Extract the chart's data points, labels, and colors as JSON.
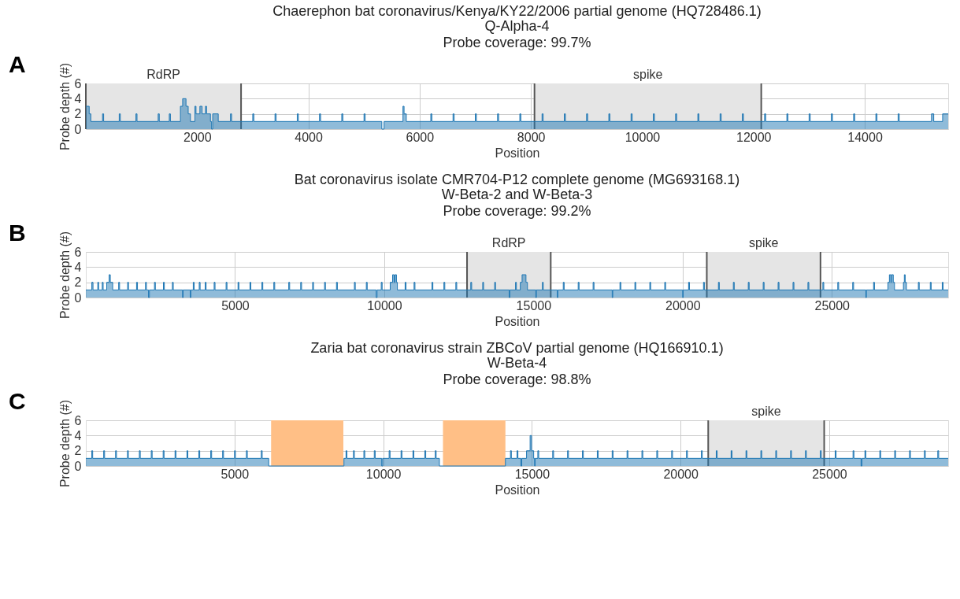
{
  "chart_data": [
    {
      "type": "step",
      "title": "Chaerephon bat coronavirus/Kenya/KY22/2006 partial genome (HQ728486.1)",
      "subtitle": "Q-Alpha-4\nProbe coverage: 99.7%",
      "xlabel": "Position",
      "ylabel": "Probe depth (#)",
      "annotations": [
        "A"
      ],
      "x": [
        0,
        60,
        90,
        300,
        320,
        600,
        620,
        900,
        920,
        1300,
        1320,
        1500,
        1520,
        1700,
        1740,
        1800,
        1840,
        1880,
        1960,
        1980,
        2050,
        2090,
        2150,
        2170,
        2240,
        2260,
        2280,
        2380,
        2600,
        2620,
        3000,
        3020,
        3400,
        3420,
        3800,
        3820,
        4200,
        4220,
        4600,
        4620,
        5000,
        5020,
        5320,
        5360,
        5700,
        5720,
        5760,
        6200,
        6220,
        6600,
        6620,
        7000,
        7020,
        7400,
        7420,
        7800,
        7820,
        8200,
        8220,
        8600,
        8620,
        9000,
        9020,
        9400,
        9420,
        9800,
        9820,
        10200,
        10220,
        10600,
        10620,
        11000,
        11020,
        11400,
        11420,
        11800,
        11820,
        12200,
        12220,
        12600,
        12620,
        13000,
        13020,
        13400,
        13420,
        13800,
        13820,
        14200,
        14220,
        14600,
        14620,
        15200,
        15240,
        15400,
        15500
      ],
      "series": [
        {
          "color": "#1f77b4",
          "values": [
            3,
            2,
            1,
            2,
            1,
            2,
            1,
            2,
            1,
            2,
            1,
            2,
            1,
            3,
            4,
            3,
            2,
            1,
            3,
            2,
            3,
            2,
            3,
            2,
            1,
            0,
            2,
            1,
            2,
            1,
            2,
            1,
            2,
            1,
            2,
            1,
            2,
            1,
            2,
            1,
            2,
            1,
            0,
            1,
            3,
            2,
            1,
            2,
            1,
            2,
            1,
            2,
            1,
            2,
            1,
            2,
            1,
            2,
            1,
            2,
            1,
            2,
            1,
            2,
            1,
            2,
            1,
            2,
            1,
            2,
            1,
            2,
            1,
            2,
            1,
            2,
            1,
            2,
            1,
            2,
            1,
            2,
            1,
            2,
            1,
            2,
            1,
            2,
            1,
            2,
            1,
            2,
            1,
            2,
            2
          ]
        }
      ],
      "xlim": [
        0,
        15500
      ],
      "ylim": [
        0,
        6
      ],
      "xticks": [
        2000,
        4000,
        6000,
        8000,
        10000,
        12000,
        14000
      ],
      "yticks": [
        0,
        2,
        4,
        6
      ],
      "grid": true,
      "bands": [
        {
          "axis": "x",
          "from": 0,
          "to": 2790,
          "label": "RdRP",
          "color": "#e5e5e5"
        },
        {
          "axis": "x",
          "from": 8064,
          "to": 12140,
          "label": "spike",
          "color": "#e5e5e5"
        }
      ],
      "ref_lines": [
        {
          "axis": "x",
          "value": 0,
          "color": "#555555"
        },
        {
          "axis": "x",
          "value": 2790,
          "color": "#555555"
        },
        {
          "axis": "x",
          "value": 8064,
          "color": "#555555"
        },
        {
          "axis": "x",
          "value": 12140,
          "color": "#555555"
        }
      ]
    },
    {
      "type": "step",
      "title": "Bat coronavirus isolate CMR704-P12 complete genome (MG693168.1)",
      "subtitle": "W-Beta-2 and W-Beta-3\nProbe coverage: 99.2%",
      "xlabel": "Position",
      "ylabel": "Probe depth (#)",
      "annotations": [
        "B"
      ],
      "x": [
        0,
        200,
        240,
        400,
        430,
        550,
        580,
        700,
        780,
        820,
        900,
        1100,
        1130,
        1400,
        1430,
        1700,
        1730,
        2000,
        2030,
        2100,
        2130,
        2300,
        2330,
        2600,
        2630,
        2900,
        2930,
        3240,
        3260,
        3500,
        3520,
        3600,
        3630,
        3800,
        3830,
        4000,
        4030,
        4300,
        4330,
        4700,
        4730,
        5100,
        5130,
        5500,
        5530,
        5900,
        5930,
        6300,
        6330,
        6800,
        6830,
        7200,
        7230,
        7600,
        7630,
        8000,
        8030,
        8400,
        8430,
        9000,
        9030,
        9400,
        9430,
        9730,
        9760,
        9900,
        9930,
        10200,
        10280,
        10330,
        10360,
        10410,
        10440,
        10700,
        10730,
        11000,
        11030,
        11600,
        11630,
        12000,
        12030,
        12400,
        12430,
        12900,
        12930,
        13300,
        13330,
        13700,
        13730,
        14190,
        14210,
        14400,
        14430,
        14560,
        14620,
        14750,
        14800,
        15080,
        15100,
        15300,
        15330,
        15800,
        15820,
        16000,
        16030,
        16500,
        16530,
        17000,
        17030,
        17640,
        17660,
        17900,
        17930,
        18400,
        18430,
        18900,
        18930,
        19400,
        19430,
        20000,
        20020,
        20200,
        20230,
        20700,
        20730,
        21200,
        21230,
        21700,
        21730,
        22200,
        22230,
        22700,
        22730,
        23200,
        23230,
        23700,
        23730,
        24200,
        24230,
        24700,
        24730,
        25200,
        25230,
        25700,
        25730,
        26140,
        26160,
        26400,
        26430,
        26880,
        26930,
        26980,
        27000,
        27060,
        27100,
        27400,
        27430,
        27460,
        27500,
        27900,
        27930,
        28300,
        28330,
        28700,
        28730,
        28900
      ],
      "series": [
        {
          "color": "#1f77b4",
          "values": [
            1,
            2,
            1,
            2,
            1,
            2,
            1,
            2,
            3,
            2,
            1,
            2,
            1,
            2,
            1,
            2,
            1,
            2,
            1,
            0,
            1,
            2,
            1,
            2,
            1,
            2,
            1,
            0,
            1,
            0,
            1,
            2,
            1,
            2,
            1,
            2,
            1,
            2,
            1,
            2,
            1,
            2,
            1,
            2,
            1,
            2,
            1,
            2,
            1,
            2,
            1,
            2,
            1,
            2,
            1,
            2,
            1,
            2,
            1,
            2,
            1,
            2,
            1,
            0,
            1,
            2,
            1,
            2,
            3,
            2,
            3,
            2,
            1,
            2,
            1,
            2,
            1,
            2,
            1,
            2,
            1,
            2,
            1,
            2,
            1,
            2,
            1,
            2,
            1,
            0,
            1,
            2,
            1,
            2,
            3,
            2,
            1,
            0,
            1,
            2,
            1,
            0,
            1,
            2,
            1,
            2,
            1,
            2,
            1,
            0,
            1,
            2,
            1,
            2,
            1,
            2,
            1,
            2,
            1,
            0,
            1,
            2,
            1,
            2,
            1,
            2,
            1,
            2,
            1,
            2,
            1,
            2,
            1,
            2,
            1,
            2,
            1,
            2,
            1,
            2,
            1,
            2,
            1,
            2,
            1,
            0,
            1,
            2,
            1,
            2,
            3,
            2,
            3,
            2,
            1,
            2,
            3,
            2,
            1,
            2,
            1,
            2,
            1,
            2,
            1,
            1
          ]
        }
      ],
      "xlim": [
        0,
        28900
      ],
      "ylim": [
        0,
        6
      ],
      "xticks": [
        5000,
        10000,
        15000,
        20000,
        25000
      ],
      "yticks": [
        0,
        2,
        4,
        6
      ],
      "grid": true,
      "bands": [
        {
          "axis": "x",
          "from": 12775,
          "to": 15580,
          "label": "RdRP",
          "color": "#e5e5e5"
        },
        {
          "axis": "x",
          "from": 20810,
          "to": 24620,
          "label": "spike",
          "color": "#e5e5e5"
        }
      ],
      "ref_lines": [
        {
          "axis": "x",
          "value": 12775,
          "color": "#555555"
        },
        {
          "axis": "x",
          "value": 15580,
          "color": "#555555"
        },
        {
          "axis": "x",
          "value": 20810,
          "color": "#555555"
        },
        {
          "axis": "x",
          "value": 24620,
          "color": "#555555"
        }
      ]
    },
    {
      "type": "step",
      "title": "Zaria bat coronavirus strain ZBCoV partial genome (HQ166910.1)",
      "subtitle": "W-Beta-4\nProbe coverage: 98.8%",
      "xlabel": "Position",
      "ylabel": "Probe depth (#)",
      "annotations": [
        "C"
      ],
      "x": [
        0,
        200,
        230,
        600,
        630,
        1000,
        1030,
        1400,
        1430,
        1800,
        1830,
        2200,
        2230,
        2600,
        2630,
        3000,
        3030,
        3400,
        3430,
        3800,
        3830,
        4200,
        4230,
        4600,
        4630,
        5000,
        5030,
        5400,
        5430,
        5900,
        5930,
        6150,
        8680,
        8750,
        8780,
        9000,
        9030,
        9350,
        9380,
        9700,
        9730,
        9950,
        9980,
        10200,
        10230,
        10600,
        10630,
        11000,
        11030,
        11400,
        11430,
        11750,
        11780,
        11890,
        14110,
        14280,
        14310,
        14500,
        14530,
        14630,
        14660,
        14820,
        14940,
        14990,
        15060,
        15090,
        15110,
        15200,
        15230,
        15700,
        15730,
        16200,
        16230,
        16700,
        16730,
        17200,
        17230,
        17700,
        17730,
        18200,
        18230,
        18700,
        18730,
        19200,
        19230,
        19700,
        19730,
        20200,
        20230,
        20700,
        20730,
        21200,
        21230,
        21700,
        21730,
        22200,
        22230,
        22700,
        22730,
        23200,
        23230,
        23700,
        23730,
        24200,
        24230,
        24700,
        24730,
        25200,
        25230,
        25800,
        25830,
        26070,
        26100,
        26200,
        26230,
        26700,
        26730,
        27200,
        27230,
        27700,
        27730,
        28200,
        28230,
        28650,
        28680,
        29000
      ],
      "series": [
        {
          "color": "#1f77b4",
          "values": [
            1,
            2,
            1,
            2,
            1,
            2,
            1,
            2,
            1,
            2,
            1,
            2,
            1,
            2,
            1,
            2,
            1,
            2,
            1,
            2,
            1,
            2,
            1,
            2,
            1,
            2,
            1,
            2,
            1,
            2,
            1,
            0,
            1,
            2,
            1,
            2,
            1,
            2,
            1,
            2,
            1,
            0,
            1,
            2,
            1,
            2,
            1,
            2,
            1,
            2,
            1,
            2,
            1,
            0,
            1,
            2,
            1,
            2,
            1,
            0,
            1,
            2,
            4,
            2,
            1,
            0,
            1,
            2,
            1,
            2,
            1,
            2,
            1,
            2,
            1,
            2,
            1,
            2,
            1,
            2,
            1,
            2,
            1,
            2,
            1,
            2,
            1,
            2,
            1,
            2,
            1,
            2,
            1,
            2,
            1,
            2,
            1,
            2,
            1,
            2,
            1,
            2,
            1,
            2,
            1,
            2,
            1,
            2,
            1,
            2,
            1,
            0,
            1,
            2,
            1,
            2,
            1,
            2,
            1,
            2,
            1,
            2,
            1,
            2,
            1,
            1
          ]
        }
      ],
      "xlim": [
        0,
        29000
      ],
      "ylim": [
        0,
        6
      ],
      "xticks": [
        5000,
        10000,
        15000,
        20000,
        25000
      ],
      "yticks": [
        0,
        2,
        4,
        6
      ],
      "grid": true,
      "bands": [
        {
          "axis": "x",
          "from": 6230,
          "to": 8660,
          "color": "#ffbf86"
        },
        {
          "axis": "x",
          "from": 12010,
          "to": 14110,
          "color": "#ffbf86"
        },
        {
          "axis": "x",
          "from": 20930,
          "to": 24830,
          "label": "spike",
          "color": "#e5e5e5"
        }
      ],
      "ref_lines": [
        {
          "axis": "x",
          "value": 20930,
          "color": "#555555"
        },
        {
          "axis": "x",
          "value": 24830,
          "color": "#555555"
        }
      ]
    }
  ]
}
